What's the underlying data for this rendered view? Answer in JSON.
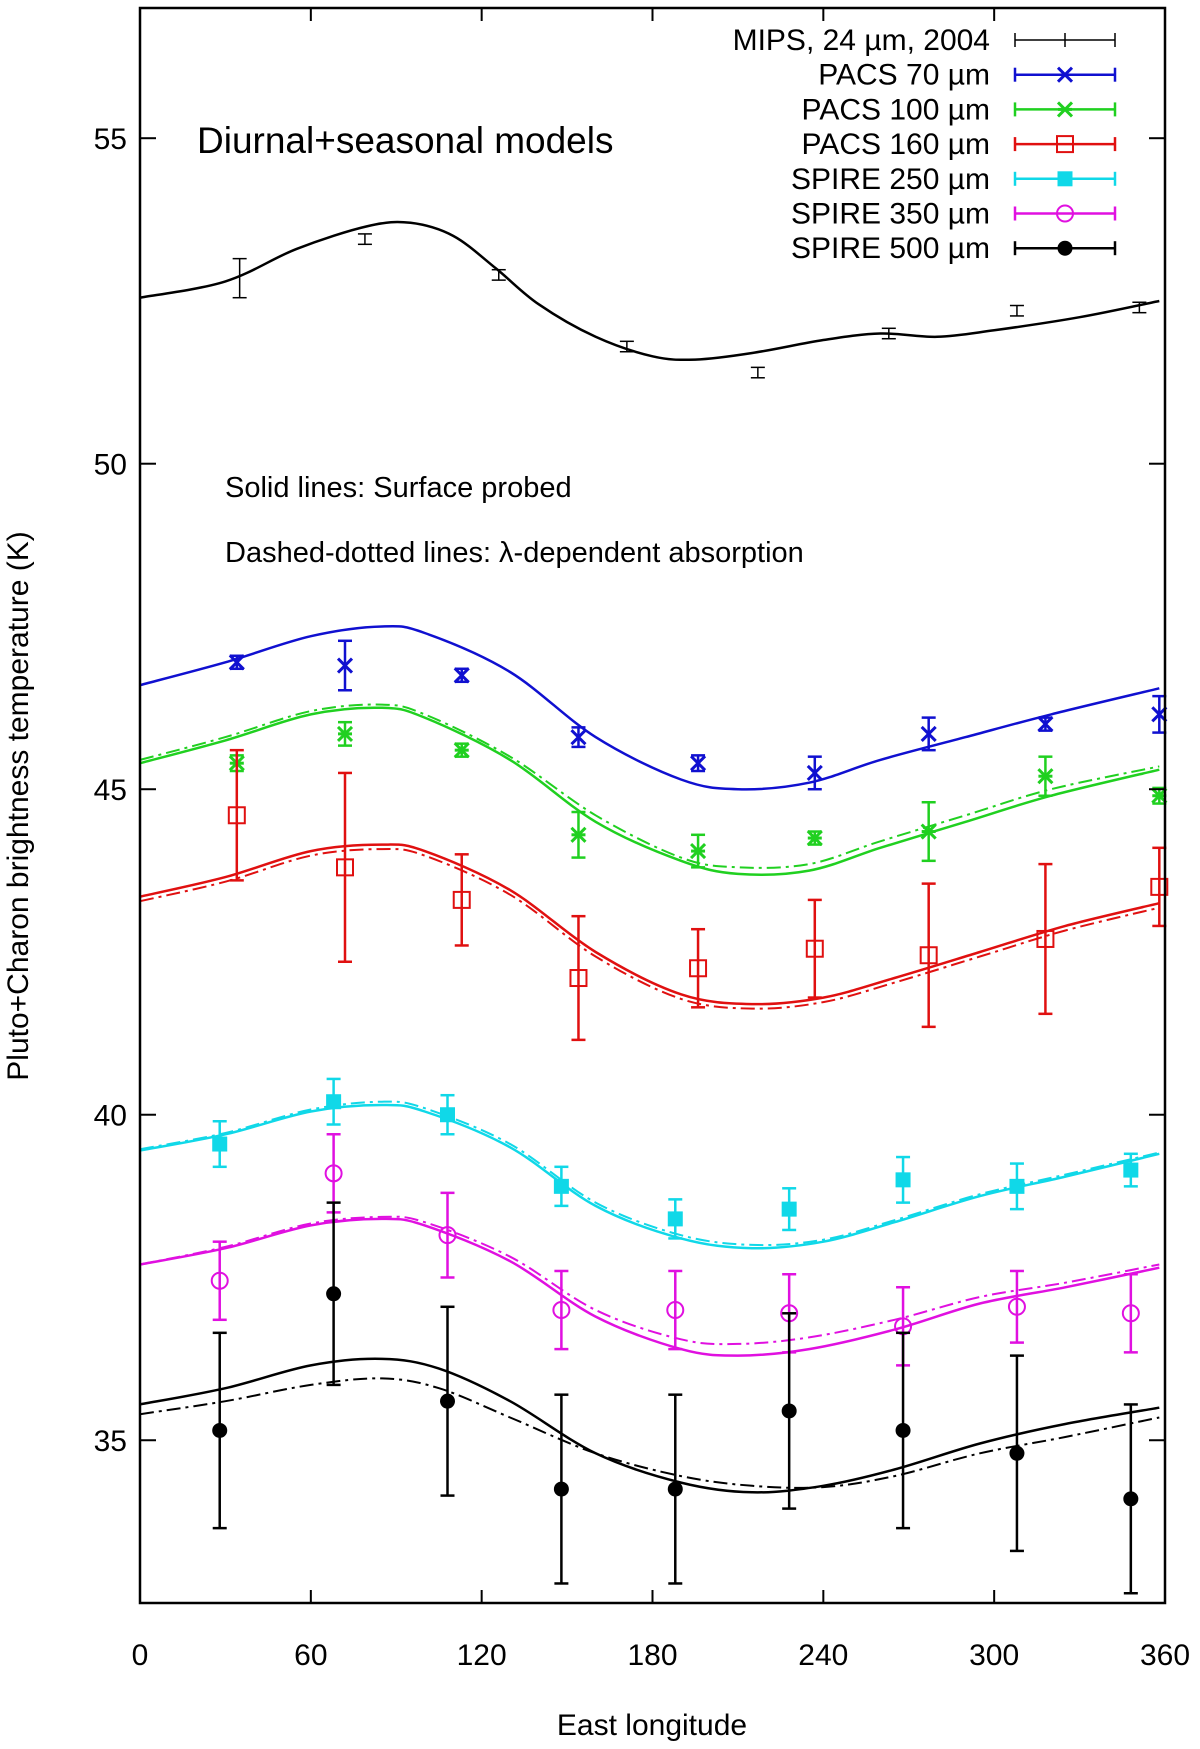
{
  "chart_data": {
    "type": "scatter",
    "title": "",
    "xlabel": "East longitude",
    "ylabel": "Pluto+Charon brightness temperature (K)",
    "xlim": [
      0,
      360
    ],
    "ylim": [
      32.5,
      57
    ],
    "xticks": [
      0,
      60,
      120,
      180,
      240,
      300,
      360
    ],
    "yticks": [
      35,
      40,
      45,
      50,
      55
    ],
    "annotations": {
      "title_text": "Diurnal+seasonal models",
      "solid_note": "Solid lines: Surface probed",
      "dashed_note": "Dashed-dotted lines: λ-dependent absorption"
    },
    "series": [
      {
        "name": "MIPS, 24 µm, 2004",
        "color": "#000000",
        "marker": "none",
        "points": [
          {
            "x": 35,
            "y": 52.85,
            "err": 0.3
          },
          {
            "x": 79,
            "y": 53.45,
            "err": 0.08
          },
          {
            "x": 126,
            "y": 52.9,
            "err": 0.08
          },
          {
            "x": 171,
            "y": 51.8,
            "err": 0.08
          },
          {
            "x": 217,
            "y": 51.4,
            "err": 0.08
          },
          {
            "x": 263,
            "y": 52.0,
            "err": 0.08
          },
          {
            "x": 308,
            "y": 52.35,
            "err": 0.08
          },
          {
            "x": 351,
            "y": 52.4,
            "err": 0.08
          }
        ],
        "model_solid": [
          [
            0,
            52.55
          ],
          [
            30,
            52.8
          ],
          [
            55,
            53.3
          ],
          [
            80,
            53.65
          ],
          [
            95,
            53.7
          ],
          [
            110,
            53.5
          ],
          [
            125,
            53.0
          ],
          [
            140,
            52.45
          ],
          [
            160,
            51.95
          ],
          [
            180,
            51.65
          ],
          [
            195,
            51.6
          ],
          [
            215,
            51.7
          ],
          [
            240,
            51.9
          ],
          [
            260,
            52.0
          ],
          [
            280,
            51.95
          ],
          [
            300,
            52.05
          ],
          [
            330,
            52.25
          ],
          [
            358,
            52.5
          ]
        ],
        "model_dashdot": []
      },
      {
        "name": "PACS 70 µm",
        "color": "#1010d0",
        "marker": "x",
        "points": [
          {
            "x": 34,
            "y": 46.95,
            "err": 0.1
          },
          {
            "x": 72,
            "y": 46.9,
            "err": 0.38
          },
          {
            "x": 113,
            "y": 46.75,
            "err": 0.1
          },
          {
            "x": 154,
            "y": 45.8,
            "err": 0.15
          },
          {
            "x": 196,
            "y": 45.4,
            "err": 0.12
          },
          {
            "x": 237,
            "y": 45.25,
            "err": 0.25
          },
          {
            "x": 277,
            "y": 45.85,
            "err": 0.25
          },
          {
            "x": 318,
            "y": 46.0,
            "err": 0.1
          },
          {
            "x": 358,
            "y": 46.15,
            "err": 0.28
          }
        ],
        "model_solid": [
          [
            0,
            46.6
          ],
          [
            30,
            46.95
          ],
          [
            60,
            47.35
          ],
          [
            85,
            47.5
          ],
          [
            100,
            47.4
          ],
          [
            130,
            46.8
          ],
          [
            160,
            45.8
          ],
          [
            190,
            45.15
          ],
          [
            210,
            45.0
          ],
          [
            235,
            45.1
          ],
          [
            260,
            45.45
          ],
          [
            290,
            45.8
          ],
          [
            320,
            46.15
          ],
          [
            358,
            46.55
          ]
        ],
        "model_dashdot": []
      },
      {
        "name": "PACS 100 µm",
        "color": "#20d020",
        "marker": "asterisk",
        "points": [
          {
            "x": 34,
            "y": 45.4,
            "err": 0.12
          },
          {
            "x": 72,
            "y": 45.85,
            "err": 0.18
          },
          {
            "x": 113,
            "y": 45.6,
            "err": 0.1
          },
          {
            "x": 154,
            "y": 44.3,
            "err": 0.35
          },
          {
            "x": 196,
            "y": 44.05,
            "err": 0.25
          },
          {
            "x": 237,
            "y": 44.25,
            "err": 0.1
          },
          {
            "x": 277,
            "y": 44.35,
            "err": 0.45
          },
          {
            "x": 318,
            "y": 45.2,
            "err": 0.3
          },
          {
            "x": 358,
            "y": 44.9,
            "err": 0.12
          }
        ],
        "model_solid": [
          [
            0,
            45.4
          ],
          [
            30,
            45.75
          ],
          [
            60,
            46.15
          ],
          [
            85,
            46.25
          ],
          [
            100,
            46.1
          ],
          [
            130,
            45.45
          ],
          [
            160,
            44.5
          ],
          [
            190,
            43.9
          ],
          [
            210,
            43.7
          ],
          [
            235,
            43.75
          ],
          [
            260,
            44.1
          ],
          [
            290,
            44.5
          ],
          [
            320,
            44.9
          ],
          [
            358,
            45.3
          ]
        ],
        "model_dashdot": [
          [
            0,
            45.45
          ],
          [
            30,
            45.8
          ],
          [
            60,
            46.2
          ],
          [
            85,
            46.3
          ],
          [
            100,
            46.15
          ],
          [
            130,
            45.5
          ],
          [
            160,
            44.6
          ],
          [
            190,
            43.95
          ],
          [
            210,
            43.8
          ],
          [
            235,
            43.85
          ],
          [
            260,
            44.2
          ],
          [
            290,
            44.6
          ],
          [
            320,
            45.0
          ],
          [
            358,
            45.35
          ]
        ]
      },
      {
        "name": "PACS 160 µm",
        "color": "#e01010",
        "marker": "open-square",
        "points": [
          {
            "x": 34,
            "y": 44.6,
            "err": 1.0
          },
          {
            "x": 72,
            "y": 43.8,
            "err": 1.45
          },
          {
            "x": 113,
            "y": 43.3,
            "err": 0.7
          },
          {
            "x": 154,
            "y": 42.1,
            "err": 0.95
          },
          {
            "x": 196,
            "y": 42.25,
            "err": 0.6
          },
          {
            "x": 237,
            "y": 42.55,
            "err": 0.75
          },
          {
            "x": 277,
            "y": 42.45,
            "err": 1.1
          },
          {
            "x": 318,
            "y": 42.7,
            "err": 1.15
          },
          {
            "x": 358,
            "y": 43.5,
            "err": 0.6
          }
        ],
        "model_solid": [
          [
            0,
            43.35
          ],
          [
            30,
            43.65
          ],
          [
            60,
            44.05
          ],
          [
            85,
            44.15
          ],
          [
            100,
            44.05
          ],
          [
            130,
            43.45
          ],
          [
            160,
            42.5
          ],
          [
            190,
            41.85
          ],
          [
            215,
            41.7
          ],
          [
            240,
            41.8
          ],
          [
            265,
            42.1
          ],
          [
            295,
            42.5
          ],
          [
            325,
            42.9
          ],
          [
            358,
            43.25
          ]
        ],
        "model_dashdot": [
          [
            0,
            43.28
          ],
          [
            30,
            43.58
          ],
          [
            60,
            43.98
          ],
          [
            85,
            44.08
          ],
          [
            100,
            43.98
          ],
          [
            130,
            43.38
          ],
          [
            160,
            42.43
          ],
          [
            190,
            41.78
          ],
          [
            215,
            41.63
          ],
          [
            240,
            41.73
          ],
          [
            265,
            42.03
          ],
          [
            295,
            42.43
          ],
          [
            325,
            42.83
          ],
          [
            358,
            43.18
          ]
        ]
      },
      {
        "name": "SPIRE 250 µm",
        "color": "#10d8e8",
        "marker": "filled-square",
        "points": [
          {
            "x": 28,
            "y": 39.55,
            "err": 0.35
          },
          {
            "x": 68,
            "y": 40.2,
            "err": 0.35
          },
          {
            "x": 108,
            "y": 40.0,
            "err": 0.3
          },
          {
            "x": 148,
            "y": 38.9,
            "err": 0.3
          },
          {
            "x": 188,
            "y": 38.4,
            "err": 0.3
          },
          {
            "x": 228,
            "y": 38.55,
            "err": 0.32
          },
          {
            "x": 268,
            "y": 39.0,
            "err": 0.35
          },
          {
            "x": 308,
            "y": 38.9,
            "err": 0.35
          },
          {
            "x": 348,
            "y": 39.15,
            "err": 0.25
          }
        ],
        "model_solid": [
          [
            0,
            39.45
          ],
          [
            30,
            39.7
          ],
          [
            60,
            40.05
          ],
          [
            85,
            40.15
          ],
          [
            100,
            40.05
          ],
          [
            130,
            39.5
          ],
          [
            160,
            38.6
          ],
          [
            190,
            38.1
          ],
          [
            215,
            37.95
          ],
          [
            240,
            38.05
          ],
          [
            265,
            38.35
          ],
          [
            295,
            38.75
          ],
          [
            325,
            39.05
          ],
          [
            358,
            39.4
          ]
        ],
        "model_dashdot": [
          [
            0,
            39.47
          ],
          [
            30,
            39.72
          ],
          [
            60,
            40.08
          ],
          [
            85,
            40.2
          ],
          [
            100,
            40.1
          ],
          [
            130,
            39.55
          ],
          [
            160,
            38.65
          ],
          [
            190,
            38.15
          ],
          [
            215,
            38.0
          ],
          [
            240,
            38.08
          ],
          [
            265,
            38.38
          ],
          [
            295,
            38.78
          ],
          [
            325,
            39.08
          ],
          [
            358,
            39.42
          ]
        ]
      },
      {
        "name": "SPIRE 350 µm",
        "color": "#e010e0",
        "marker": "open-circle",
        "points": [
          {
            "x": 28,
            "y": 37.45,
            "err": 0.6
          },
          {
            "x": 68,
            "y": 39.1,
            "err": 0.6
          },
          {
            "x": 108,
            "y": 38.15,
            "err": 0.65
          },
          {
            "x": 148,
            "y": 37.0,
            "err": 0.6
          },
          {
            "x": 188,
            "y": 37.0,
            "err": 0.6
          },
          {
            "x": 228,
            "y": 36.95,
            "err": 0.6
          },
          {
            "x": 268,
            "y": 36.75,
            "err": 0.6
          },
          {
            "x": 308,
            "y": 37.05,
            "err": 0.55
          },
          {
            "x": 348,
            "y": 36.95,
            "err": 0.6
          }
        ],
        "model_solid": [
          [
            0,
            37.7
          ],
          [
            30,
            37.95
          ],
          [
            60,
            38.3
          ],
          [
            85,
            38.4
          ],
          [
            100,
            38.3
          ],
          [
            130,
            37.75
          ],
          [
            160,
            36.9
          ],
          [
            190,
            36.4
          ],
          [
            210,
            36.3
          ],
          [
            235,
            36.4
          ],
          [
            265,
            36.7
          ],
          [
            295,
            37.1
          ],
          [
            325,
            37.35
          ],
          [
            358,
            37.65
          ]
        ],
        "model_dashdot": [
          [
            0,
            37.7
          ],
          [
            30,
            37.97
          ],
          [
            60,
            38.33
          ],
          [
            85,
            38.43
          ],
          [
            100,
            38.35
          ],
          [
            130,
            37.82
          ],
          [
            160,
            37.0
          ],
          [
            190,
            36.55
          ],
          [
            210,
            36.48
          ],
          [
            235,
            36.58
          ],
          [
            265,
            36.85
          ],
          [
            295,
            37.2
          ],
          [
            325,
            37.42
          ],
          [
            358,
            37.7
          ]
        ]
      },
      {
        "name": "SPIRE 500 µm",
        "color": "#000000",
        "marker": "filled-circle",
        "points": [
          {
            "x": 28,
            "y": 35.15,
            "err": 1.5
          },
          {
            "x": 68,
            "y": 37.25,
            "err": 1.4
          },
          {
            "x": 108,
            "y": 35.6,
            "err": 1.45
          },
          {
            "x": 148,
            "y": 34.25,
            "err": 1.45
          },
          {
            "x": 188,
            "y": 34.25,
            "err": 1.45
          },
          {
            "x": 228,
            "y": 35.45,
            "err": 1.5
          },
          {
            "x": 268,
            "y": 35.15,
            "err": 1.5
          },
          {
            "x": 308,
            "y": 34.8,
            "err": 1.5
          },
          {
            "x": 348,
            "y": 34.1,
            "err": 1.45
          }
        ],
        "model_solid": [
          [
            0,
            35.55
          ],
          [
            30,
            35.8
          ],
          [
            60,
            36.15
          ],
          [
            85,
            36.25
          ],
          [
            105,
            36.1
          ],
          [
            130,
            35.6
          ],
          [
            160,
            34.8
          ],
          [
            190,
            34.35
          ],
          [
            215,
            34.2
          ],
          [
            240,
            34.3
          ],
          [
            265,
            34.55
          ],
          [
            295,
            34.95
          ],
          [
            325,
            35.25
          ],
          [
            358,
            35.5
          ]
        ],
        "model_dashdot": [
          [
            0,
            35.4
          ],
          [
            30,
            35.6
          ],
          [
            60,
            35.85
          ],
          [
            85,
            35.95
          ],
          [
            105,
            35.8
          ],
          [
            130,
            35.35
          ],
          [
            160,
            34.8
          ],
          [
            190,
            34.45
          ],
          [
            215,
            34.3
          ],
          [
            240,
            34.28
          ],
          [
            265,
            34.45
          ],
          [
            295,
            34.8
          ],
          [
            325,
            35.05
          ],
          [
            358,
            35.35
          ]
        ]
      }
    ]
  }
}
